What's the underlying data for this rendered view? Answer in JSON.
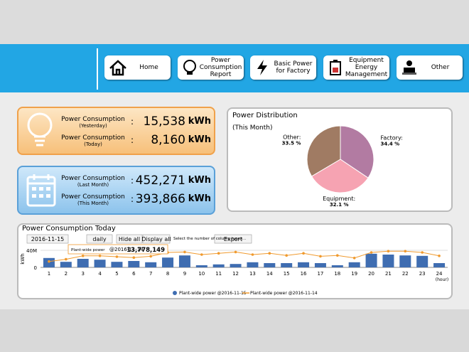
{
  "nav": [
    "Home",
    "Power Consumption Report",
    "Basic Power for Factory",
    "Equipment Energy Management",
    "Other"
  ],
  "summary": {
    "daily": [
      {
        "label": "Power Consumption",
        "period": "(Yesterday)",
        "value": "15,538",
        "unit": "kWh"
      },
      {
        "label": "Power Consumption",
        "period": "(Today)",
        "value": "8,160",
        "unit": "kWh"
      }
    ],
    "monthly": [
      {
        "label": "Power Consumption",
        "period": "(Last Month)",
        "value": "452,271",
        "unit": "kWh"
      },
      {
        "label": "Power Consumption",
        "period": "(This Month)",
        "value": "393,866",
        "unit": "kWh"
      }
    ]
  },
  "chart_data": [
    {
      "type": "pie",
      "title": "Power  Distribution",
      "subtitle": "(This Month)",
      "categories": [
        "Factory:",
        "Equipment:",
        "Other:"
      ],
      "values": [
        34.4,
        32.1,
        33.5
      ],
      "value_labels": [
        "34.4 %",
        "32.1 %",
        "33.5 %"
      ],
      "colors": [
        "#b27ba2",
        "#f6a3b2",
        "#a07b63"
      ]
    },
    {
      "type": "bar",
      "title": "Power Consumption Today",
      "controls": {
        "date": "2016-11-15",
        "interval": "daily",
        "hide": "Hide all",
        "display": "Display all",
        "select": "Select the number of column types...",
        "export": "Export"
      },
      "ylabel": "kWh",
      "xlabel": "(hour)",
      "ylim": [
        0,
        40000000
      ],
      "yticks": [
        0,
        {
          "value": 40000000,
          "label": "40M"
        }
      ],
      "categories": [
        "1",
        "2",
        "3",
        "4",
        "5",
        "6",
        "7",
        "8",
        "9",
        "10",
        "11",
        "12",
        "13",
        "14",
        "15",
        "16",
        "17",
        "18",
        "19",
        "20",
        "21",
        "22",
        "23",
        "24"
      ],
      "series": [
        {
          "name": "Plant-wide power @2016-11-15",
          "kind": "bar",
          "color": "#3f6db1",
          "values": [
            22000000,
            13000000,
            20000000,
            18000000,
            13000000,
            15000000,
            12000000,
            23000000,
            28000000,
            5000000,
            7000000,
            8000000,
            12000000,
            10000000,
            10000000,
            12000000,
            10000000,
            5000000,
            12000000,
            32000000,
            30000000,
            28000000,
            27000000,
            10000000
          ]
        },
        {
          "name": "Plant-wide power @2016-11-14",
          "kind": "line",
          "color": "#f09a2e",
          "values": [
            13778149,
            19000000,
            27000000,
            27000000,
            25000000,
            23000000,
            26000000,
            35000000,
            36000000,
            30000000,
            33000000,
            36000000,
            30000000,
            33000000,
            28000000,
            33000000,
            26000000,
            28000000,
            22000000,
            35000000,
            38000000,
            38000000,
            35000000,
            27000000
          ]
        }
      ],
      "tooltip": {
        "name": "Plant-wide power",
        "date": "@2016-11-14",
        "value": "13,778,149"
      }
    }
  ]
}
